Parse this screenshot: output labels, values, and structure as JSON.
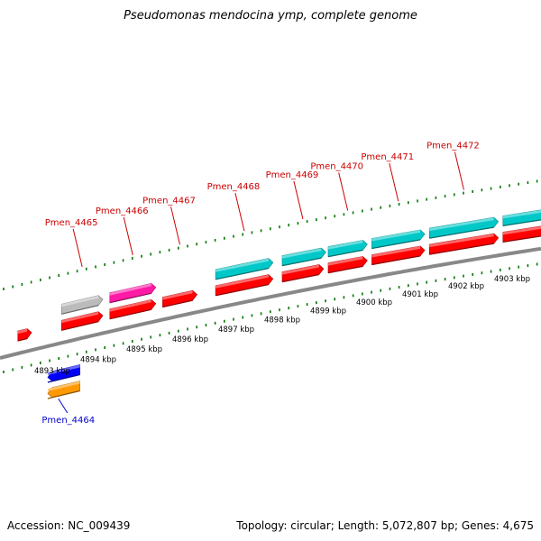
{
  "title": "Pseudomonas mendocina ymp, complete genome",
  "footer": {
    "accession_label": "Accession:",
    "accession": "NC_009439",
    "topology_label": "Topology:",
    "topology": "circular",
    "length_label": "Length:",
    "length": "5,072,807 bp",
    "genes_label": "Genes:",
    "genes": "4,675"
  },
  "colors": {
    "forward_cds": "#ff0000",
    "forward_rna": "#00c8c8",
    "reverse_cds": "#0000ff",
    "pseudo_gray": "#bbbbbb",
    "magenta": "#ff1aa6",
    "orange": "#ff9900",
    "tick": "#007700",
    "backbone": "#888888",
    "forward_label": "#cc0000",
    "reverse_label": "#0000cc"
  },
  "scale": {
    "unit": "kbp",
    "ticks": [
      {
        "kbp": 4893,
        "label": "4893 kbp"
      },
      {
        "kbp": 4894,
        "label": "4894 kbp"
      },
      {
        "kbp": 4895,
        "label": "4895 kbp"
      },
      {
        "kbp": 4896,
        "label": "4896 kbp"
      },
      {
        "kbp": 4897,
        "label": "4897 kbp"
      },
      {
        "kbp": 4898,
        "label": "4898 kbp"
      },
      {
        "kbp": 4899,
        "label": "4899 kbp"
      },
      {
        "kbp": 4900,
        "label": "4900 kbp"
      },
      {
        "kbp": 4901,
        "label": "4901 kbp"
      },
      {
        "kbp": 4902,
        "label": "4902 kbp"
      },
      {
        "kbp": 4903,
        "label": "4903 kbp"
      }
    ]
  },
  "features": [
    {
      "id": "cds-left-edge",
      "label": "",
      "strand": "forward",
      "kind": "cds",
      "start_kbp": 4892.25,
      "end_kbp": 4892.55
    },
    {
      "id": "Pmen_4465",
      "label": "Pmen_4465",
      "strand": "forward",
      "kind": "cds",
      "start_kbp": 4893.2,
      "end_kbp": 4894.1
    },
    {
      "id": "Pmen_4465-pseudo",
      "label": "",
      "strand": "forward",
      "kind": "pseudo",
      "start_kbp": 4893.2,
      "end_kbp": 4894.1
    },
    {
      "id": "Pmen_4466",
      "label": "Pmen_4466",
      "strand": "forward",
      "kind": "cds",
      "start_kbp": 4894.25,
      "end_kbp": 4895.25
    },
    {
      "id": "Pmen_4466-magenta",
      "label": "",
      "strand": "forward",
      "kind": "magenta",
      "start_kbp": 4894.25,
      "end_kbp": 4895.25
    },
    {
      "id": "Pmen_4467",
      "label": "Pmen_4467",
      "strand": "forward",
      "kind": "cds",
      "start_kbp": 4895.4,
      "end_kbp": 4896.15
    },
    {
      "id": "Pmen_4468",
      "label": "Pmen_4468",
      "strand": "forward",
      "kind": "cds",
      "start_kbp": 4896.55,
      "end_kbp": 4897.8
    },
    {
      "id": "Pmen_4468-rna",
      "label": "",
      "strand": "forward",
      "kind": "rna",
      "start_kbp": 4896.55,
      "end_kbp": 4897.8
    },
    {
      "id": "Pmen_4469",
      "label": "Pmen_4469",
      "strand": "forward",
      "kind": "cds",
      "start_kbp": 4898.0,
      "end_kbp": 4898.9
    },
    {
      "id": "Pmen_4469-rna",
      "label": "",
      "strand": "forward",
      "kind": "rna",
      "start_kbp": 4898.0,
      "end_kbp": 4898.95
    },
    {
      "id": "Pmen_4470",
      "label": "Pmen_4470",
      "strand": "forward",
      "kind": "cds",
      "start_kbp": 4899.0,
      "end_kbp": 4899.85
    },
    {
      "id": "Pmen_4470-rna",
      "label": "",
      "strand": "forward",
      "kind": "rna",
      "start_kbp": 4899.0,
      "end_kbp": 4899.85
    },
    {
      "id": "Pmen_4471",
      "label": "Pmen_4471",
      "strand": "forward",
      "kind": "cds",
      "start_kbp": 4899.95,
      "end_kbp": 4901.1
    },
    {
      "id": "Pmen_4471-rna",
      "label": "",
      "strand": "forward",
      "kind": "rna",
      "start_kbp": 4899.95,
      "end_kbp": 4901.1
    },
    {
      "id": "Pmen_4472",
      "label": "Pmen_4472",
      "strand": "forward",
      "kind": "cds",
      "start_kbp": 4901.2,
      "end_kbp": 4902.7
    },
    {
      "id": "Pmen_4472-rna",
      "label": "",
      "strand": "forward",
      "kind": "rna",
      "start_kbp": 4901.2,
      "end_kbp": 4902.7
    },
    {
      "id": "cds-right-edge",
      "label": "",
      "strand": "forward",
      "kind": "cds",
      "start_kbp": 4902.8,
      "end_kbp": 4904.2
    },
    {
      "id": "rna-right-edge",
      "label": "",
      "strand": "forward",
      "kind": "rna",
      "start_kbp": 4902.8,
      "end_kbp": 4904.2
    },
    {
      "id": "Pmen_4464",
      "label": "Pmen_4464",
      "strand": "reverse",
      "kind": "cds",
      "start_kbp": 4892.9,
      "end_kbp": 4893.6
    },
    {
      "id": "Pmen_4464-orange",
      "label": "",
      "strand": "reverse",
      "kind": "orange",
      "start_kbp": 4892.9,
      "end_kbp": 4893.6
    }
  ]
}
